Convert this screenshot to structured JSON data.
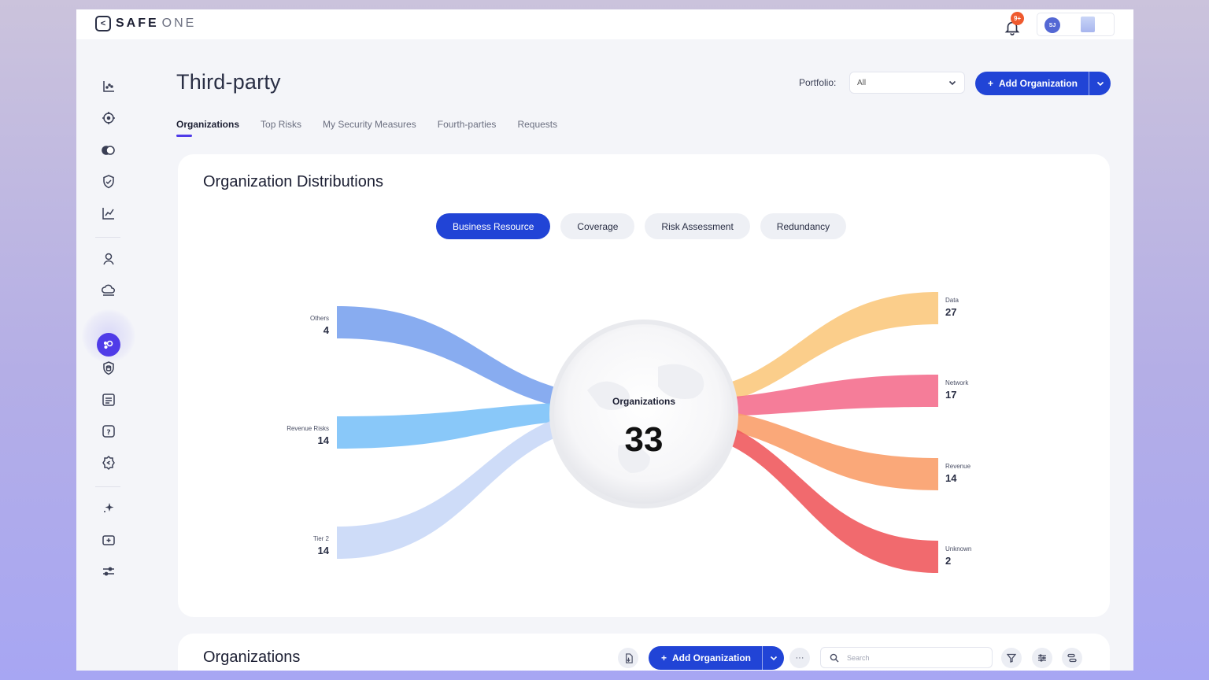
{
  "app": {
    "logo_text": "SAFE",
    "logo_text_thin": "ONE",
    "notification_badge": "9+",
    "user_initials": "SJ"
  },
  "header": {
    "title": "Third-party",
    "portfolio_label": "Portfolio:",
    "portfolio_value": "All",
    "add_org_label": "Add Organization"
  },
  "tabs": [
    {
      "label": "Organizations",
      "active": true
    },
    {
      "label": "Top Risks",
      "active": false
    },
    {
      "label": "My Security Measures",
      "active": false
    },
    {
      "label": "Fourth-parties",
      "active": false
    },
    {
      "label": "Requests",
      "active": false
    }
  ],
  "sidebar": {
    "icons": [
      "chart-scatter-icon",
      "crosshair-icon",
      "toggle-icon",
      "shield-check-icon",
      "line-chart-icon",
      "user-icon",
      "cloud-icon",
      "third-party-icon",
      "database-shield-icon",
      "list-icon",
      "help-icon",
      "settings-gear-icon",
      "sparkle-icon",
      "folder-add-icon",
      "sliders-icon"
    ],
    "active": "third-party-icon"
  },
  "distribution": {
    "title": "Organization Distributions",
    "filters": [
      {
        "label": "Business Resource",
        "active": true
      },
      {
        "label": "Coverage",
        "active": false
      },
      {
        "label": "Risk Assessment",
        "active": false
      },
      {
        "label": "Redundancy",
        "active": false
      }
    ]
  },
  "chart_data": {
    "type": "sankey",
    "center": {
      "label": "Organizations",
      "value": 33
    },
    "sources": [
      {
        "name": "Others",
        "value": 4,
        "color": "#7ba3ee"
      },
      {
        "name": "Revenue Risks",
        "value": 14,
        "color": "#7cc2f8"
      },
      {
        "name": "Tier 2",
        "value": 14,
        "color": "#c9d8f7"
      }
    ],
    "targets": [
      {
        "name": "Data",
        "value": 27,
        "color": "#fbc97e"
      },
      {
        "name": "Network",
        "value": 17,
        "color": "#f46f8e"
      },
      {
        "name": "Revenue",
        "value": 14,
        "color": "#fa9e6a"
      },
      {
        "name": "Unknown",
        "value": 2,
        "color": "#ef5a5e"
      }
    ]
  },
  "organizations_section": {
    "title": "Organizations",
    "add_org_label": "Add Organization",
    "search_placeholder": "Search"
  }
}
